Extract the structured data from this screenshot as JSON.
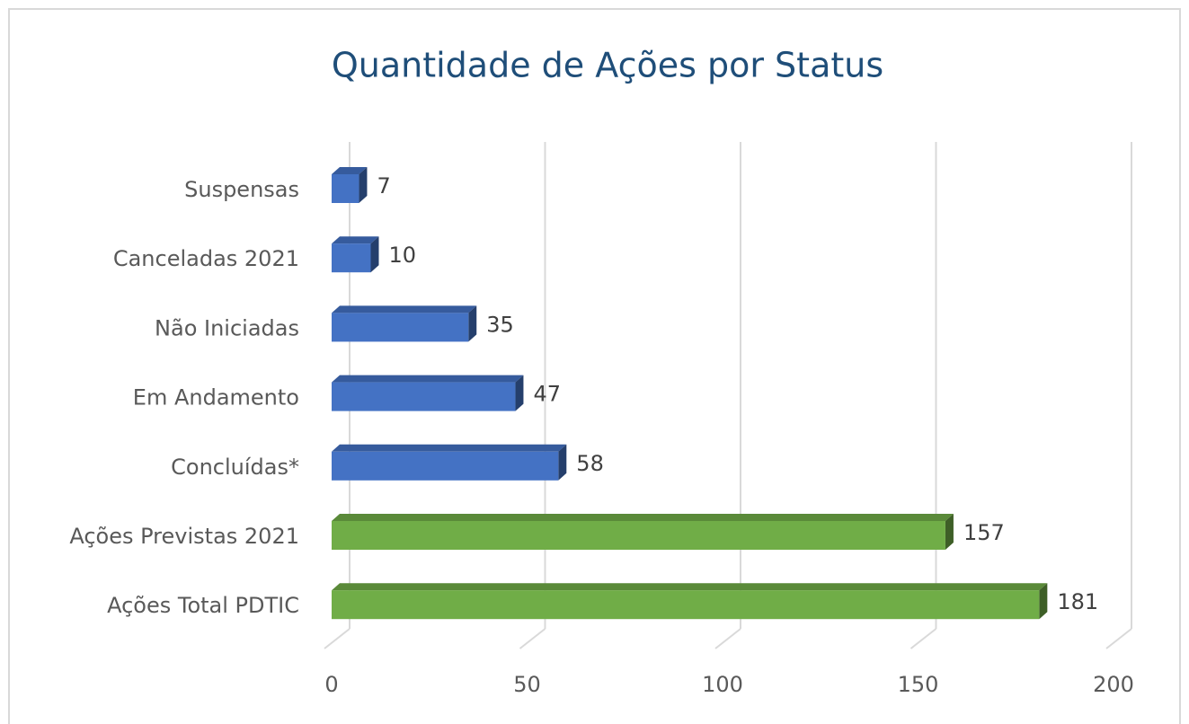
{
  "chart_data": {
    "type": "bar3d_horizontal",
    "title": "Quantidade de Ações por Status",
    "categories": [
      "Suspensas",
      "Canceladas 2021",
      "Não Iniciadas",
      "Em Andamento",
      "Concluídas*",
      "Ações Previstas 2021",
      "Ações Total PDTIC"
    ],
    "values": [
      7,
      10,
      35,
      47,
      58,
      157,
      181
    ],
    "colors": [
      "#4472c4",
      "#4472c4",
      "#4472c4",
      "#4472c4",
      "#4472c4",
      "#70ad47",
      "#70ad47"
    ],
    "xlim": [
      0,
      200
    ],
    "xticks": [
      0,
      50,
      100,
      150,
      200
    ],
    "grid": true
  }
}
